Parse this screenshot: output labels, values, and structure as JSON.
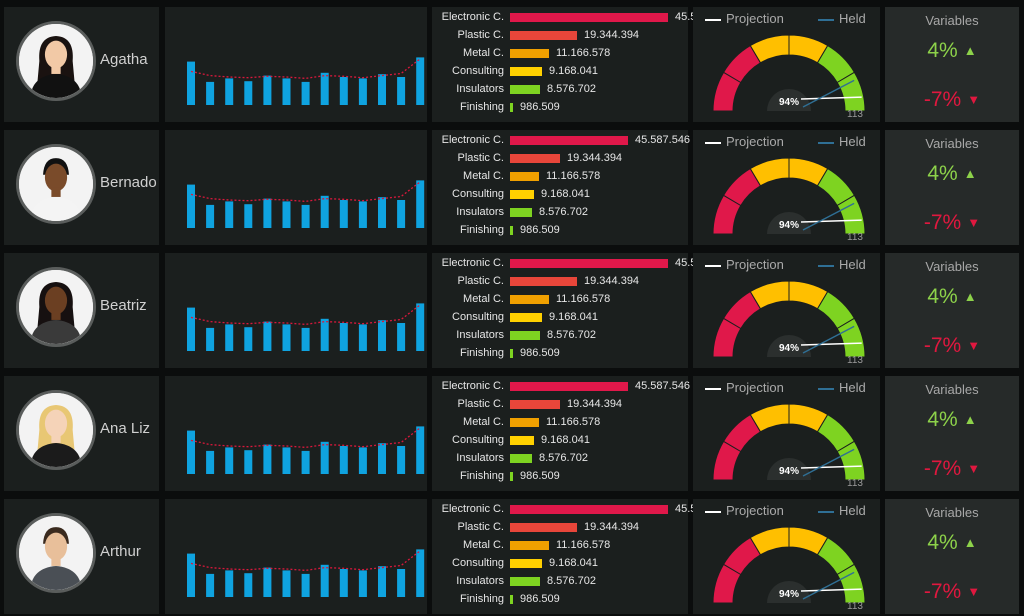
{
  "colors": {
    "background": "#0b0d0d",
    "panel": "#1b1f1e",
    "spark_bar": "#0fa3e0",
    "spark_trend": "#d9183c",
    "up": "#8dd24a",
    "down": "#e0183f",
    "gauge_red": "#e0184a",
    "gauge_yellow": "#ffbf00",
    "gauge_green": "#7ed321"
  },
  "people": [
    {
      "name": "Agatha",
      "avatar_icon": "woman-avatar-icon"
    },
    {
      "name": "Bernado",
      "avatar_icon": "man-avatar-icon"
    },
    {
      "name": "Beatriz",
      "avatar_icon": "woman-avatar-icon"
    },
    {
      "name": "Ana Liz",
      "avatar_icon": "woman-avatar-icon"
    },
    {
      "name": "Arthur",
      "avatar_icon": "man-avatar-icon"
    }
  ],
  "sparkline": {
    "bars": [
      0.62,
      0.33,
      0.38,
      0.34,
      0.42,
      0.38,
      0.33,
      0.46,
      0.4,
      0.38,
      0.44,
      0.4,
      0.68
    ],
    "trend": [
      0.48,
      0.42,
      0.4,
      0.39,
      0.41,
      0.4,
      0.38,
      0.42,
      0.41,
      0.39,
      0.42,
      0.45,
      0.66
    ]
  },
  "breakdown": {
    "max_value": 45587546,
    "items": [
      {
        "label": "Electronic C.",
        "value": 45587546,
        "display": "45.587.546",
        "color": "#e0184a"
      },
      {
        "label": "Plastic C.",
        "value": 19344394,
        "display": "19.344.394",
        "color": "#e8463a"
      },
      {
        "label": "Metal C.",
        "value": 11166578,
        "display": "11.166.578",
        "color": "#f0a000"
      },
      {
        "label": "Consulting",
        "value": 9168041,
        "display": "9.168.041",
        "color": "#ffd000"
      },
      {
        "label": "Insulators",
        "value": 8576702,
        "display": "8.576.702",
        "color": "#7ed321"
      },
      {
        "label": "Finishing",
        "value": 986509,
        "display": "986.509",
        "color": "#7ed321"
      }
    ]
  },
  "gauge": {
    "legend_projection": "Projection",
    "legend_held": "Held",
    "percent_label": "94%",
    "max_label": "113",
    "projection_fraction": 0.94,
    "held_fraction": 0.86,
    "projection_color": "#ffffff",
    "held_color": "#2f6f95"
  },
  "variables": {
    "title": "Variables",
    "up_value": "4%",
    "up_arrow": "▲",
    "down_value": "-7%",
    "down_arrow": "▼"
  }
}
